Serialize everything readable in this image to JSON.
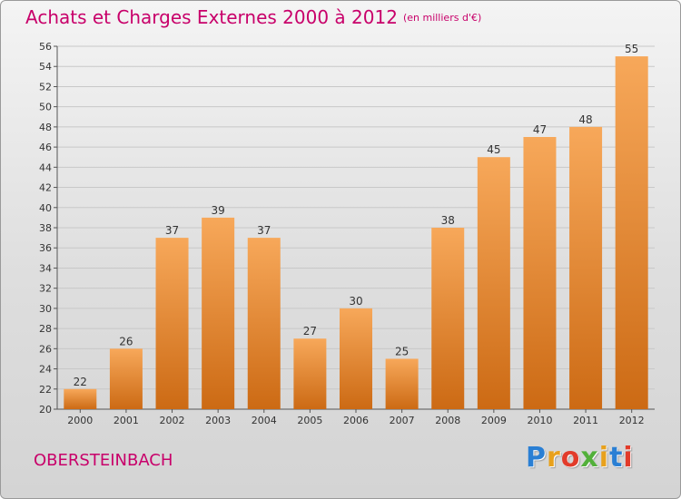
{
  "chart_data": {
    "type": "bar",
    "title": "Achats et Charges Externes 2000 à 2012",
    "subtitle": "(en milliers d'€)",
    "categories": [
      "2000",
      "2001",
      "2002",
      "2003",
      "2004",
      "2005",
      "2006",
      "2007",
      "2008",
      "2009",
      "2010",
      "2011",
      "2012"
    ],
    "values": [
      22,
      26,
      37,
      39,
      37,
      27,
      30,
      25,
      38,
      45,
      47,
      48,
      55
    ],
    "ylim": [
      20,
      56
    ],
    "yticks": [
      20,
      22,
      24,
      26,
      28,
      30,
      32,
      34,
      36,
      38,
      40,
      42,
      44,
      46,
      48,
      50,
      52,
      54,
      56
    ],
    "grid": true,
    "legend": "none",
    "colors": {
      "bar_top": "#f7a85a",
      "bar_bottom": "#cc6a14",
      "title": "#c8006a",
      "grid": "#c8c8c8"
    }
  },
  "footer": {
    "place": "OBERSTEINBACH",
    "logo": "Proxiti"
  }
}
